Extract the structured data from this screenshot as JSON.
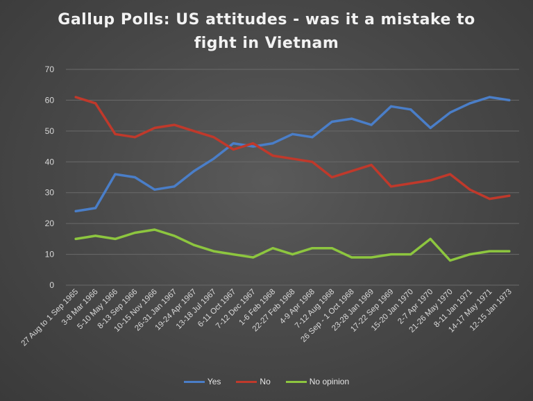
{
  "chart_data": {
    "type": "line",
    "title_line1": "Gallup Polls: US attitudes - was it a mistake to",
    "title_line2": "fight in Vietnam",
    "xlabel": "",
    "ylabel": "",
    "ylim": [
      0,
      70
    ],
    "yticks": [
      0,
      10,
      20,
      30,
      40,
      50,
      60,
      70
    ],
    "grid": true,
    "legend_position": "bottom",
    "categories": [
      "27 Aug to 1 Sep 1965",
      "3-8 Mar 1966",
      "5-10 May 1966",
      "8-13 Sep 1966",
      "10-15 Nov 1966",
      "26-31 Jan 1967",
      "19-24 Apr 1967",
      "13-18 Jul 1967",
      "6-11 Oct 1967",
      "7-12 Dec 1967",
      "1-6 Feb 1968",
      "22-27 Feb 1968",
      "4-9 Apr 1968",
      "7-12 Aug 1968",
      "26 Sep - 1 Oct 1968",
      "23-28 Jan 1969",
      "17-22 Sep 1969",
      "15-20 Jan 1970",
      "2-7 Apr 1970",
      "21-26 May 1970",
      "8-11 Jan 1971",
      "14-17 May 1971",
      "12-15 Jan 1973"
    ],
    "series": [
      {
        "name": "Yes",
        "color": "#4a7ec8",
        "values": [
          24,
          25,
          36,
          35,
          31,
          32,
          37,
          41,
          46,
          45,
          46,
          49,
          48,
          53,
          54,
          52,
          58,
          57,
          51,
          56,
          59,
          61,
          60
        ]
      },
      {
        "name": "No",
        "color": "#c0392b",
        "values": [
          61,
          59,
          49,
          48,
          51,
          52,
          50,
          48,
          44,
          46,
          42,
          41,
          40,
          35,
          37,
          39,
          32,
          33,
          34,
          36,
          31,
          28,
          29
        ]
      },
      {
        "name": "No opinion",
        "color": "#8dc63f",
        "values": [
          15,
          16,
          15,
          17,
          18,
          16,
          13,
          11,
          10,
          9,
          12,
          10,
          12,
          12,
          9,
          9,
          10,
          10,
          15,
          8,
          10,
          11,
          11
        ]
      }
    ]
  }
}
